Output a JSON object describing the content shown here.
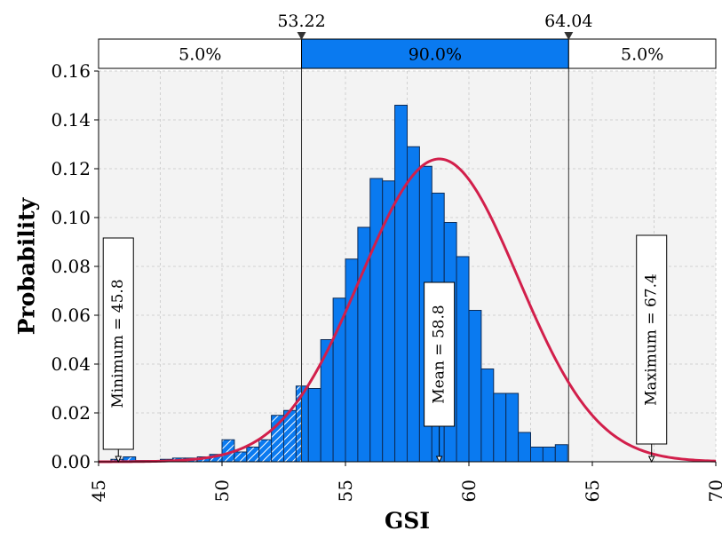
{
  "chart_data": {
    "type": "bar",
    "title": "",
    "xlabel": "GSI",
    "ylabel": "Probability",
    "xlim": [
      45,
      70
    ],
    "ylim": [
      0,
      0.16
    ],
    "xticks": [
      "45",
      "50",
      "55",
      "60",
      "65",
      "70"
    ],
    "yticks": [
      "0.00",
      "0.02",
      "0.04",
      "0.06",
      "0.08",
      "0.10",
      "0.12",
      "0.14",
      "0.16"
    ],
    "grid": true,
    "bin_width": 0.5,
    "bins": [
      {
        "x0": 45.0,
        "value": 0.0
      },
      {
        "x0": 45.5,
        "value": 0.001
      },
      {
        "x0": 46.0,
        "value": 0.002
      },
      {
        "x0": 46.5,
        "value": 0.0005
      },
      {
        "x0": 47.0,
        "value": 0.0005
      },
      {
        "x0": 47.5,
        "value": 0.001
      },
      {
        "x0": 48.0,
        "value": 0.0015
      },
      {
        "x0": 48.5,
        "value": 0.0015
      },
      {
        "x0": 49.0,
        "value": 0.002
      },
      {
        "x0": 49.5,
        "value": 0.003
      },
      {
        "x0": 50.0,
        "value": 0.009
      },
      {
        "x0": 50.5,
        "value": 0.004
      },
      {
        "x0": 51.0,
        "value": 0.006
      },
      {
        "x0": 51.5,
        "value": 0.009
      },
      {
        "x0": 52.0,
        "value": 0.019
      },
      {
        "x0": 52.5,
        "value": 0.021
      },
      {
        "x0": 53.0,
        "value": 0.031
      },
      {
        "x0": 53.5,
        "value": 0.03
      },
      {
        "x0": 54.0,
        "value": 0.05
      },
      {
        "x0": 54.5,
        "value": 0.067
      },
      {
        "x0": 55.0,
        "value": 0.083
      },
      {
        "x0": 55.5,
        "value": 0.096
      },
      {
        "x0": 56.0,
        "value": 0.116
      },
      {
        "x0": 56.5,
        "value": 0.115
      },
      {
        "x0": 57.0,
        "value": 0.146
      },
      {
        "x0": 57.5,
        "value": 0.129
      },
      {
        "x0": 58.0,
        "value": 0.121
      },
      {
        "x0": 58.5,
        "value": 0.11
      },
      {
        "x0": 59.0,
        "value": 0.098
      },
      {
        "x0": 59.5,
        "value": 0.084
      },
      {
        "x0": 60.0,
        "value": 0.062
      },
      {
        "x0": 60.5,
        "value": 0.038
      },
      {
        "x0": 61.0,
        "value": 0.028
      },
      {
        "x0": 61.5,
        "value": 0.028
      },
      {
        "x0": 62.0,
        "value": 0.012
      },
      {
        "x0": 62.5,
        "value": 0.006
      },
      {
        "x0": 63.0,
        "value": 0.006
      },
      {
        "x0": 63.5,
        "value": 0.007
      },
      {
        "x0": 64.0,
        "value": 0.0
      }
    ],
    "fit_curve": {
      "type": "normal",
      "mean": 58.8,
      "sd": 3.2,
      "peak": 0.124,
      "color": "#d21f4b"
    },
    "percentile_band": {
      "lower": 53.22,
      "upper": 64.04,
      "lower_label": "53.22",
      "upper_label": "64.04",
      "left_pct": "5.0%",
      "mid_pct": "90.0%",
      "right_pct": "5.0%"
    },
    "annotations": {
      "minimum": {
        "x": 45.8,
        "label": "Minimum = 45.8"
      },
      "mean": {
        "x": 58.8,
        "label": "Mean = 58.8"
      },
      "maximum": {
        "x": 67.4,
        "label": "Maximum = 67.4"
      }
    },
    "colors": {
      "bar": "#0a7af0",
      "bar_edge": "#0d2b55",
      "plot_bg": "#f3f3f3",
      "grid": "#d0d0d0",
      "band_mid": "#0a7af0"
    }
  }
}
